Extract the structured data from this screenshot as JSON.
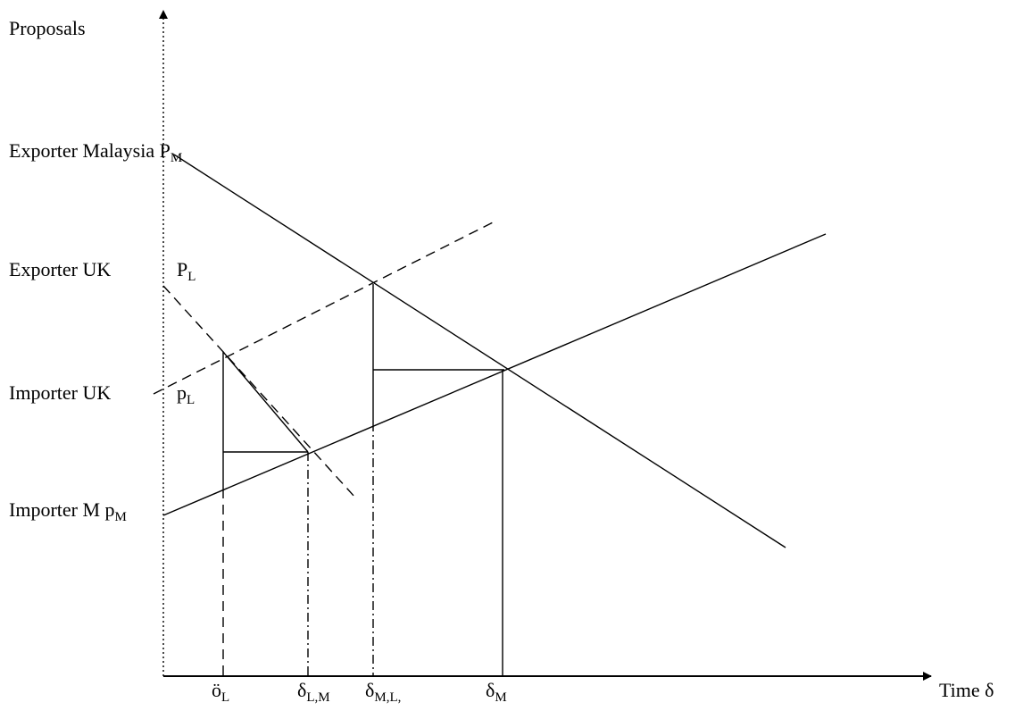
{
  "axes": {
    "y_label": "Proposals",
    "x_label": "Time δ"
  },
  "y_labels": {
    "exporter_malaysia": {
      "main": "Exporter Malaysia P",
      "sub": "M"
    },
    "exporter_uk": {
      "main": "Exporter UK",
      "p": "P",
      "sub": "L"
    },
    "importer_uk": {
      "main": "Importer UK",
      "p": "p",
      "sub": "L"
    },
    "importer_m": {
      "main": "Importer M p",
      "sub": "M"
    }
  },
  "x_ticks": [
    {
      "main": "ö",
      "sub": "L"
    },
    {
      "main": "δ",
      "sub": "L,M"
    },
    {
      "main": "δ",
      "sub": "M,L,"
    },
    {
      "main": "δ",
      "sub": "M"
    }
  ],
  "colors": {
    "ink": "#000000",
    "background": "#ffffff"
  }
}
